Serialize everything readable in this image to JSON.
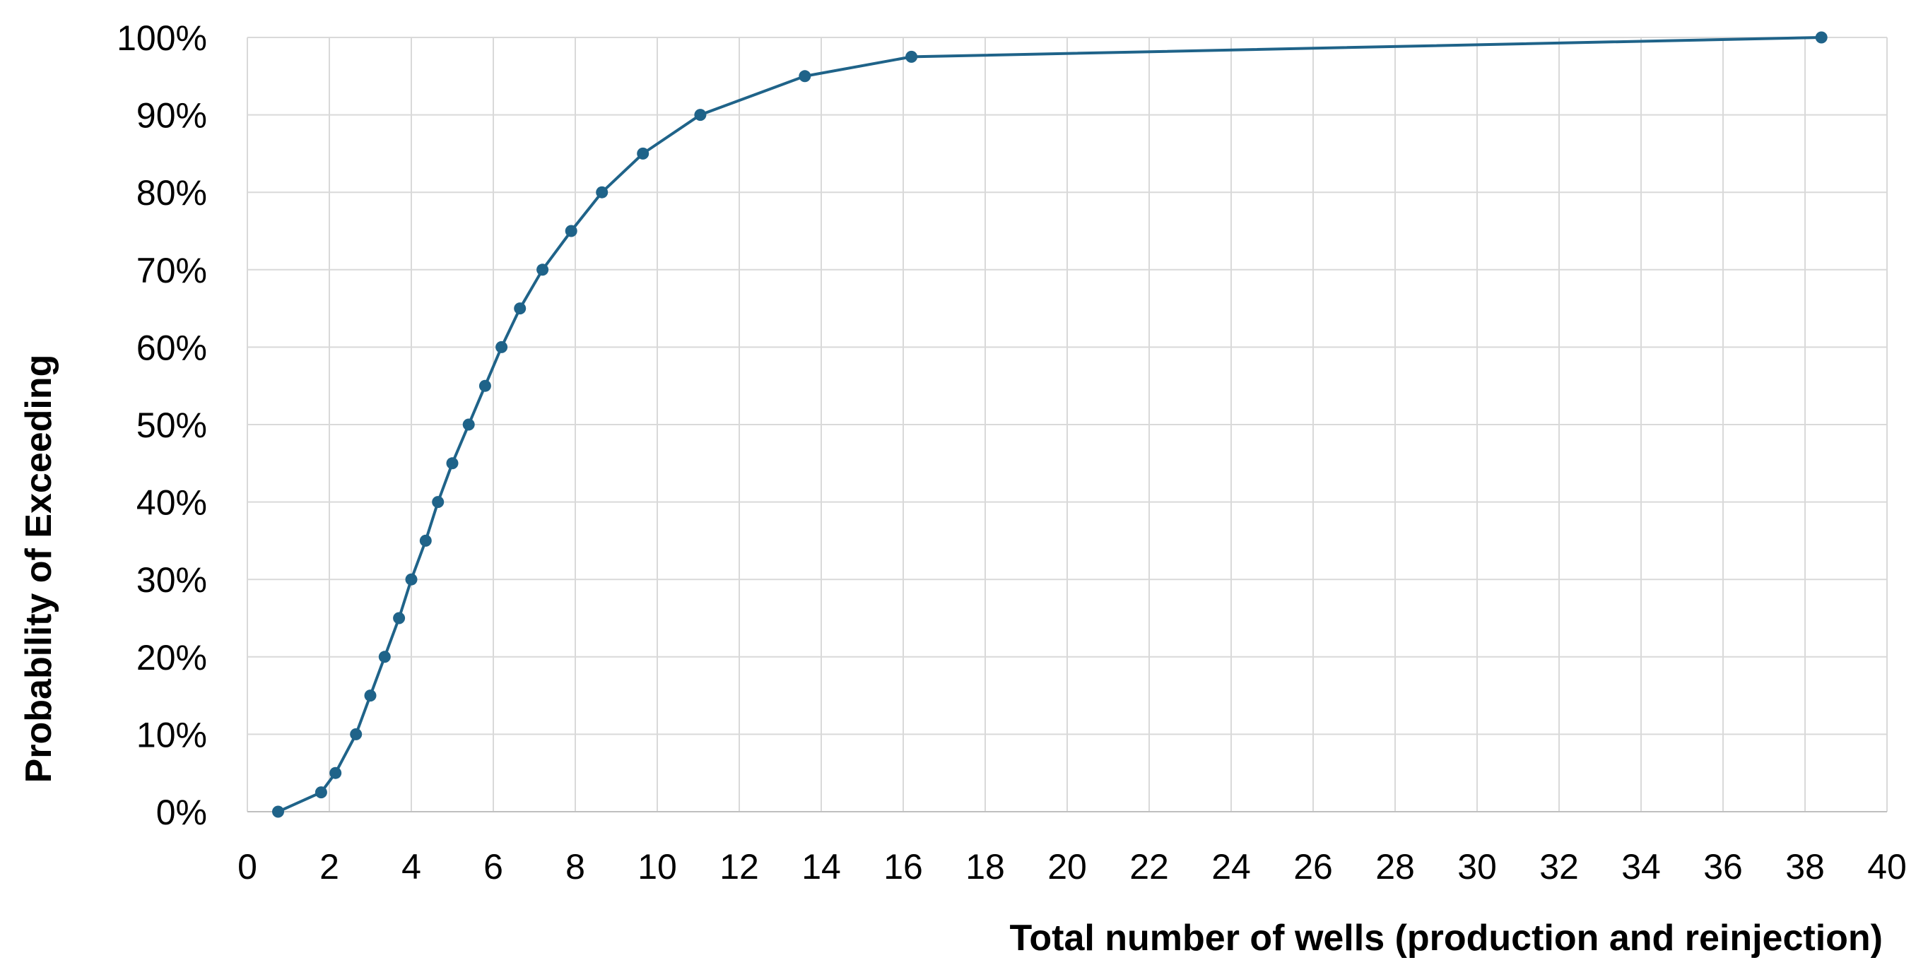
{
  "chart_data": {
    "type": "line",
    "title": "",
    "xlabel": "Total number of wells  (production and reinjection)",
    "ylabel": "Probability of Exceeding",
    "xlim": [
      0,
      40
    ],
    "ylim": [
      0,
      100
    ],
    "x_ticks": [
      0,
      2,
      4,
      6,
      8,
      10,
      12,
      14,
      16,
      18,
      20,
      22,
      24,
      26,
      28,
      30,
      32,
      34,
      36,
      38,
      40
    ],
    "y_ticks": [
      0,
      10,
      20,
      30,
      40,
      50,
      60,
      70,
      80,
      90,
      100
    ],
    "y_tick_labels": [
      "0%",
      "10%",
      "20%",
      "30%",
      "40%",
      "50%",
      "60%",
      "70%",
      "80%",
      "90%",
      "100%"
    ],
    "grid": true,
    "legend": "none",
    "line_color": "#1f6389",
    "series": [
      {
        "x": [
          0.75,
          1.8,
          2.15,
          2.65,
          3.0,
          3.35,
          3.7,
          4.0,
          4.35,
          4.65,
          5.0,
          5.4,
          5.8,
          6.2,
          6.65,
          7.2,
          7.9,
          8.65,
          9.65,
          11.05,
          13.6,
          16.2,
          38.4
        ],
        "values": [
          0,
          2.5,
          5,
          10,
          15,
          20,
          25,
          30,
          35,
          40,
          45,
          50,
          55,
          60,
          65,
          70,
          75,
          80,
          85,
          90,
          95,
          97.5,
          100
        ]
      }
    ]
  }
}
